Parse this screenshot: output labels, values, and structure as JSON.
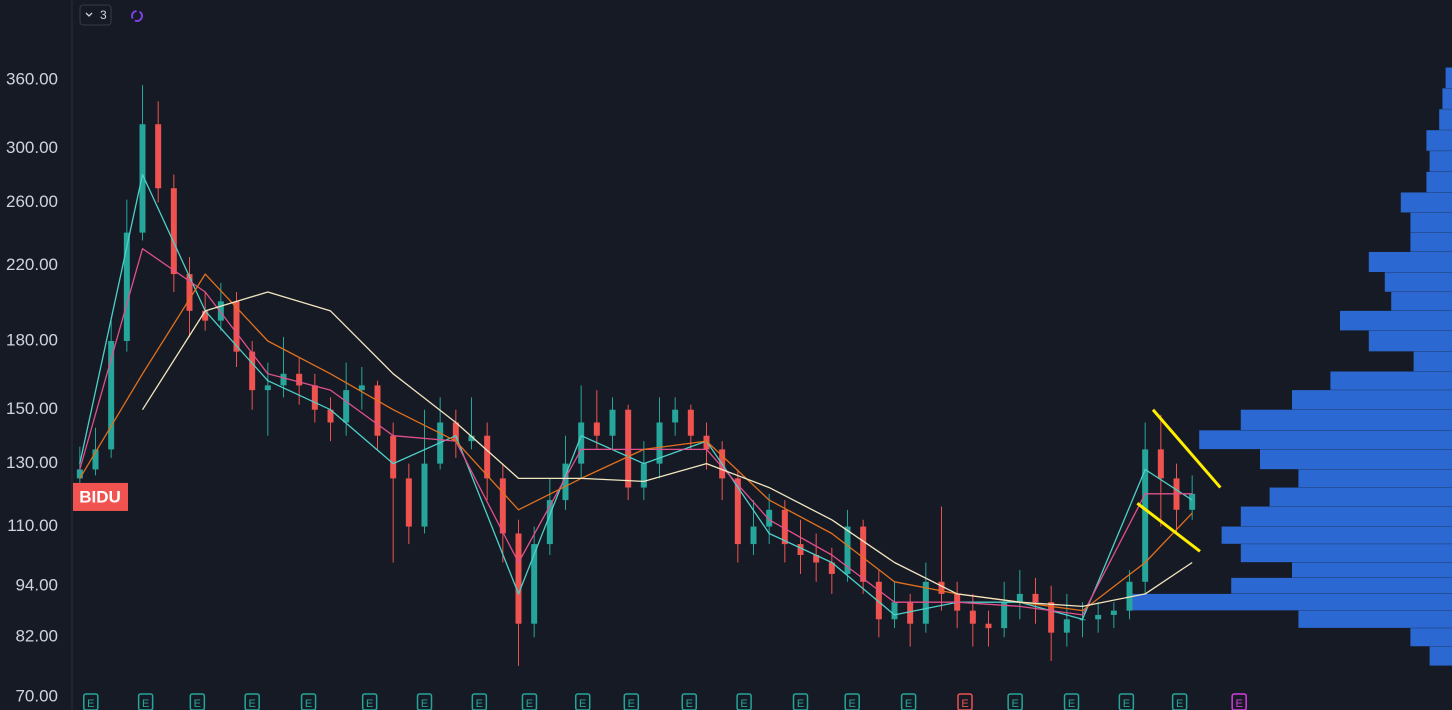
{
  "chart_data": {
    "type": "candlestick",
    "symbol_label": {
      "text": "BIDU",
      "price": 119,
      "color": "#f05350"
    },
    "indicator_count": 3,
    "log_scale": true,
    "grid": false,
    "ylim": [
      67.6,
      445
    ],
    "yticks": [
      {
        "value": 70,
        "label": "70.00"
      },
      {
        "value": 82,
        "label": "82.00"
      },
      {
        "value": 94,
        "label": "94.00"
      },
      {
        "value": 110,
        "label": "110.00"
      },
      {
        "value": 130,
        "label": "130.00"
      },
      {
        "value": 150,
        "label": "150.00"
      },
      {
        "value": 180,
        "label": "180.00"
      },
      {
        "value": 220,
        "label": "220.00"
      },
      {
        "value": 260,
        "label": "260.00"
      },
      {
        "value": 300,
        "label": "300.00"
      },
      {
        "value": 360,
        "label": "360.00"
      }
    ],
    "xlim": [
      -0.5,
      71.5
    ],
    "up_color": "#26a69a",
    "down_color": "#ef5350",
    "open": [
      125,
      128,
      135,
      180,
      240,
      320,
      270,
      215,
      195,
      190,
      200,
      175,
      158,
      160,
      165,
      160,
      150,
      145,
      158,
      160,
      140,
      125,
      110,
      130,
      145,
      138,
      140,
      125,
      108,
      85,
      105,
      118,
      130,
      145,
      140,
      150,
      122,
      130,
      145,
      150,
      140,
      135,
      125,
      105,
      110,
      115,
      105,
      102,
      100,
      97,
      110,
      95,
      86,
      90,
      85,
      95,
      92,
      88,
      85,
      84,
      90,
      92,
      90,
      83,
      86,
      86,
      87,
      88,
      95,
      135,
      125,
      115
    ],
    "high": [
      136,
      143,
      190,
      262,
      355,
      340,
      280,
      225,
      205,
      210,
      205,
      180,
      170,
      182,
      172,
      165,
      155,
      170,
      168,
      162,
      145,
      130,
      150,
      155,
      150,
      155,
      145,
      130,
      112,
      110,
      125,
      140,
      160,
      158,
      155,
      152,
      138,
      155,
      155,
      152,
      145,
      138,
      128,
      118,
      120,
      118,
      112,
      108,
      104,
      115,
      112,
      98,
      95,
      92,
      100,
      116,
      95,
      92,
      88,
      95,
      98,
      96,
      94,
      92,
      90,
      90,
      90,
      98,
      145,
      148,
      130,
      126
    ],
    "low": [
      122,
      126,
      132,
      175,
      235,
      260,
      205,
      182,
      185,
      185,
      168,
      150,
      140,
      155,
      152,
      145,
      138,
      140,
      150,
      135,
      100,
      105,
      108,
      128,
      132,
      135,
      118,
      100,
      76,
      82,
      102,
      115,
      125,
      135,
      135,
      118,
      118,
      125,
      140,
      135,
      128,
      118,
      100,
      102,
      105,
      100,
      97,
      95,
      92,
      95,
      92,
      82,
      84,
      80,
      83,
      88,
      84,
      80,
      80,
      82,
      86,
      85,
      77,
      80,
      82,
      83,
      84,
      86,
      92,
      110,
      108,
      112
    ],
    "close": [
      128,
      135,
      180,
      240,
      320,
      270,
      215,
      195,
      190,
      200,
      175,
      158,
      160,
      165,
      160,
      150,
      145,
      158,
      160,
      140,
      125,
      110,
      130,
      145,
      138,
      140,
      125,
      108,
      85,
      105,
      118,
      130,
      145,
      140,
      150,
      122,
      130,
      145,
      150,
      140,
      135,
      125,
      105,
      110,
      115,
      105,
      102,
      100,
      97,
      110,
      95,
      86,
      90,
      85,
      95,
      92,
      88,
      85,
      84,
      90,
      92,
      90,
      83,
      86,
      86,
      87,
      88,
      95,
      135,
      125,
      115,
      120
    ],
    "moving_averages": {
      "x": [
        0,
        4,
        8,
        12,
        16,
        20,
        24,
        28,
        32,
        36,
        40,
        44,
        48,
        52,
        56,
        60,
        64,
        68,
        71
      ],
      "series": [
        {
          "color": "#4dd0c8",
          "values": [
            130,
            280,
            195,
            162,
            150,
            130,
            140,
            92,
            140,
            130,
            138,
            108,
            100,
            87,
            90,
            90,
            86,
            128,
            118
          ]
        },
        {
          "color": "#e0508c",
          "values": [
            128,
            230,
            205,
            165,
            158,
            140,
            138,
            100,
            135,
            135,
            135,
            112,
            102,
            90,
            90,
            89,
            87,
            120,
            120
          ]
        },
        {
          "color": "#e0701e",
          "values": [
            125,
            165,
            215,
            180,
            165,
            150,
            138,
            115,
            125,
            135,
            138,
            118,
            108,
            95,
            92,
            90,
            88,
            100,
            114
          ]
        },
        {
          "color": "#f2e6c0",
          "values": [
            null,
            150,
            195,
            205,
            195,
            165,
            145,
            125,
            125,
            124,
            130,
            122,
            112,
            100,
            92,
            90,
            89,
            92,
            100
          ]
        }
      ]
    },
    "trendlines": {
      "color": "#ffee00",
      "lines": [
        {
          "x": [
            68.5,
            72.8
          ],
          "y": [
            150,
            122
          ]
        },
        {
          "x": [
            67.5,
            71.5
          ],
          "y": [
            117,
            103
          ]
        }
      ]
    },
    "volume_profile": {
      "color": "#2f6fe0",
      "bins": [
        76,
        80,
        84,
        88,
        92,
        96,
        100,
        105,
        110,
        116,
        122,
        128,
        135,
        142,
        150,
        158,
        166,
        175,
        185,
        195,
        205,
        216,
        228,
        240,
        253,
        267,
        282,
        298,
        315,
        333,
        352,
        372
      ],
      "values": [
        7,
        13,
        48,
        100,
        69,
        50,
        66,
        72,
        66,
        57,
        48,
        60,
        79,
        66,
        50,
        38,
        12,
        26,
        35,
        19,
        21,
        26,
        13,
        13,
        16,
        8,
        7,
        8,
        4,
        3,
        2
      ]
    },
    "earnings": {
      "label": "E",
      "x": [
        0.7,
        4.2,
        7.5,
        11.0,
        14.6,
        18.5,
        22.0,
        25.5,
        28.7,
        32.1,
        35.2,
        38.9,
        42.4,
        46.0,
        49.3,
        52.9,
        56.5,
        59.7,
        63.3,
        66.8,
        70.2,
        74.0
      ],
      "colors": [
        "#26a69a",
        "#26a69a",
        "#26a69a",
        "#26a69a",
        "#26a69a",
        "#26a69a",
        "#26a69a",
        "#26a69a",
        "#26a69a",
        "#26a69a",
        "#26a69a",
        "#26a69a",
        "#26a69a",
        "#26a69a",
        "#26a69a",
        "#26a69a",
        "#ef5350",
        "#26a69a",
        "#26a69a",
        "#26a69a",
        "#26a69a",
        "#d63de0"
      ]
    }
  }
}
